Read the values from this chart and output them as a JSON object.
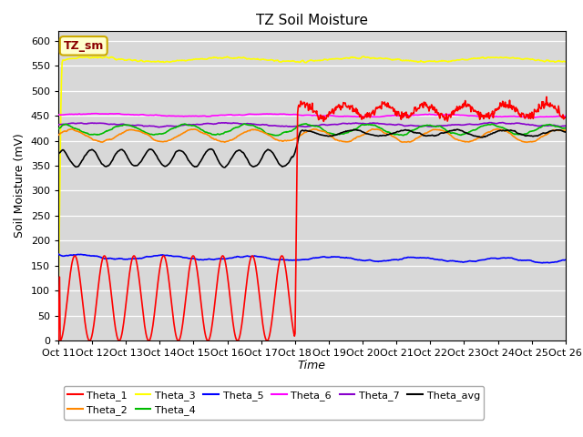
{
  "title": "TZ Soil Moisture",
  "xlabel": "Time",
  "ylabel": "Soil Moisture (mV)",
  "ylim": [
    0,
    620
  ],
  "yticks": [
    0,
    50,
    100,
    150,
    200,
    250,
    300,
    350,
    400,
    450,
    500,
    550,
    600
  ],
  "background_color": "#d8d8d8",
  "fig_background": "#ffffff",
  "legend_box_color": "#ffffcc",
  "legend_box_label": "TZ_sm",
  "series": {
    "Theta_1": {
      "color": "#ff0000",
      "lw": 1.2
    },
    "Theta_2": {
      "color": "#ff8800",
      "lw": 1.2
    },
    "Theta_3": {
      "color": "#ffff00",
      "lw": 1.2
    },
    "Theta_4": {
      "color": "#00bb00",
      "lw": 1.2
    },
    "Theta_5": {
      "color": "#0000ff",
      "lw": 1.2
    },
    "Theta_6": {
      "color": "#ff00ff",
      "lw": 1.2
    },
    "Theta_7": {
      "color": "#8800cc",
      "lw": 1.2
    },
    "Theta_avg": {
      "color": "#000000",
      "lw": 1.2
    }
  },
  "x_tick_labels": [
    "Oct 11",
    "Oct 12",
    "Oct 13",
    "Oct 14",
    "Oct 15",
    "Oct 16",
    "Oct 17",
    "Oct 18",
    "Oct 19",
    "Oct 20",
    "Oct 21",
    "Oct 22",
    "Oct 23",
    "Oct 24",
    "Oct 25",
    "Oct 26"
  ]
}
